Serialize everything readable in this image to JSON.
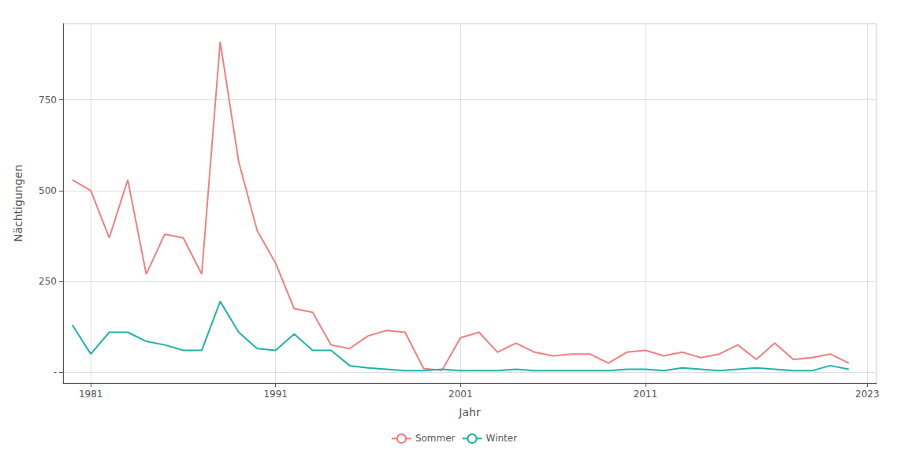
{
  "chart_data": {
    "type": "line",
    "xlabel": "Jahr",
    "ylabel": "Nächtigungen",
    "x": [
      1980,
      1981,
      1982,
      1983,
      1984,
      1985,
      1986,
      1987,
      1988,
      1989,
      1990,
      1991,
      1992,
      1993,
      1994,
      1995,
      1996,
      1997,
      1998,
      1999,
      2000,
      2001,
      2002,
      2003,
      2004,
      2005,
      2006,
      2007,
      2008,
      2009,
      2010,
      2011,
      2012,
      2013,
      2014,
      2015,
      2016,
      2017,
      2018,
      2019,
      2020,
      2021,
      2022
    ],
    "series": [
      {
        "name": "Sommer",
        "color": "#F08080",
        "values": [
          530,
          500,
          370,
          530,
          270,
          380,
          370,
          270,
          910,
          580,
          390,
          300,
          175,
          165,
          75,
          65,
          100,
          115,
          110,
          10,
          5,
          95,
          110,
          55,
          80,
          55,
          45,
          50,
          50,
          25,
          55,
          60,
          45,
          55,
          40,
          50,
          75,
          35,
          80,
          35,
          40,
          50,
          25
        ]
      },
      {
        "name": "Winter",
        "color": "#20B2AA",
        "values": [
          130,
          50,
          110,
          110,
          85,
          75,
          60,
          60,
          195,
          110,
          65,
          60,
          105,
          60,
          60,
          18,
          12,
          8,
          4,
          4,
          8,
          4,
          4,
          4,
          8,
          4,
          4,
          4,
          4,
          4,
          8,
          8,
          4,
          12,
          8,
          4,
          8,
          12,
          8,
          4,
          4,
          18,
          8
        ]
      }
    ],
    "xlim": [
      1979.5,
      2023.5
    ],
    "xticks": [
      1981,
      1991,
      2001,
      2011,
      2023
    ],
    "ylim": [
      -30,
      960
    ],
    "yticks": [
      {
        "value": 0,
        "label": "-"
      },
      250,
      500,
      750
    ],
    "grid": true,
    "legend": "bottom"
  }
}
